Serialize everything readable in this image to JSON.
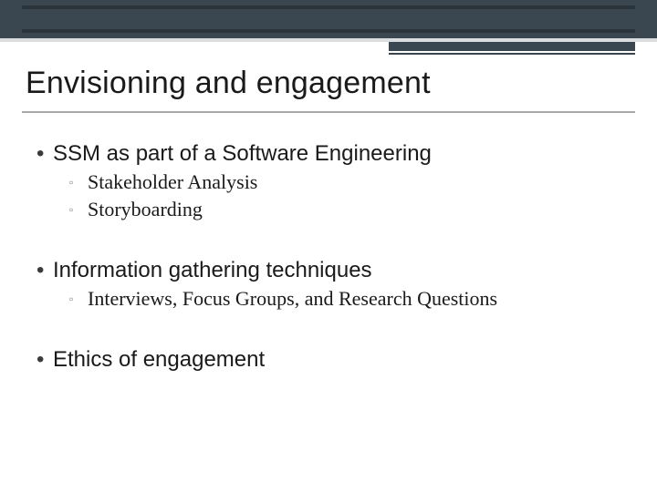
{
  "colors": {
    "band_bg": "#3a4750",
    "band_line_dark": "#2b343b",
    "under_strip": "#d9dde0",
    "accent": "#3a4750",
    "rule": "#a8a8a8",
    "text": "#1a1a1a",
    "bullet": "#3b3b3b",
    "sub_bullet": "#7a7a7a"
  },
  "title": "Envisioning and engagement",
  "bullets": [
    {
      "text": "SSM as part of a Software Engineering",
      "sub": [
        {
          "text": "Stakeholder Analysis"
        },
        {
          "text": "Storyboarding"
        }
      ]
    },
    {
      "text": "Information gathering techniques",
      "sub": [
        {
          "text": "Interviews, Focus Groups, and Research Questions"
        }
      ]
    },
    {
      "text": "Ethics of engagement",
      "sub": []
    }
  ]
}
